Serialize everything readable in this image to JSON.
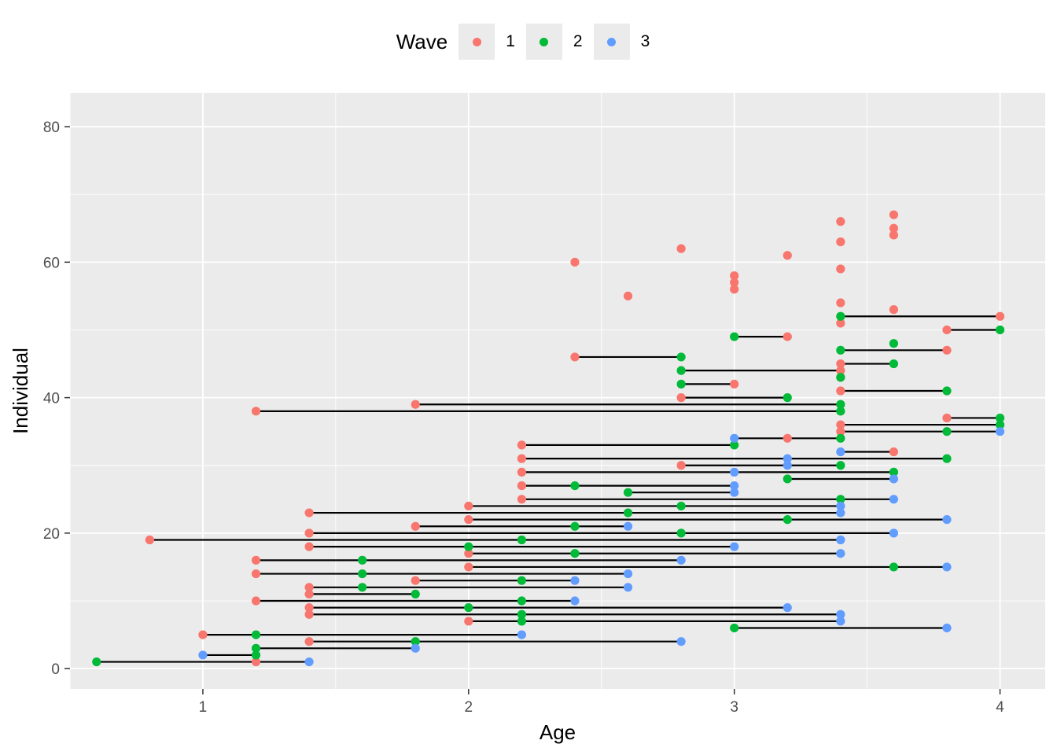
{
  "chart_data": {
    "type": "scatter",
    "xlabel": "Age",
    "ylabel": "Individual",
    "xlim": [
      0.5,
      4.17
    ],
    "ylim": [
      -3,
      85
    ],
    "x_ticks": [
      1,
      2,
      3,
      4
    ],
    "y_ticks": [
      0,
      20,
      40,
      60,
      80
    ],
    "grid": true,
    "legend": {
      "title": "Wave",
      "position": "top",
      "items": [
        {
          "label": "1",
          "color": "#F8766D"
        },
        {
          "label": "2",
          "color": "#00BA38"
        },
        {
          "label": "3",
          "color": "#619CFF"
        }
      ]
    },
    "series": [
      {
        "name": "1",
        "color": "#F8766D",
        "points": [
          [
            1.2,
            1
          ],
          [
            1.0,
            5
          ],
          [
            1.4,
            4
          ],
          [
            2.0,
            7
          ],
          [
            1.4,
            8
          ],
          [
            1.4,
            9
          ],
          [
            1.2,
            10
          ],
          [
            1.4,
            11
          ],
          [
            1.4,
            12
          ],
          [
            1.8,
            13
          ],
          [
            1.2,
            14
          ],
          [
            2.0,
            15
          ],
          [
            1.2,
            16
          ],
          [
            2.0,
            17
          ],
          [
            1.4,
            18
          ],
          [
            0.8,
            19
          ],
          [
            1.4,
            20
          ],
          [
            1.8,
            21
          ],
          [
            2.0,
            22
          ],
          [
            1.4,
            23
          ],
          [
            2.0,
            24
          ],
          [
            2.2,
            25
          ],
          [
            2.2,
            27
          ],
          [
            2.2,
            29
          ],
          [
            2.8,
            30
          ],
          [
            2.2,
            31
          ],
          [
            3.6,
            32
          ],
          [
            2.2,
            33
          ],
          [
            3.2,
            34
          ],
          [
            3.4,
            35
          ],
          [
            3.4,
            36
          ],
          [
            3.8,
            37
          ],
          [
            1.2,
            38
          ],
          [
            1.8,
            39
          ],
          [
            2.8,
            40
          ],
          [
            3.4,
            41
          ],
          [
            3.0,
            42
          ],
          [
            3.4,
            43
          ],
          [
            3.4,
            44
          ],
          [
            3.4,
            45
          ],
          [
            2.4,
            46
          ],
          [
            3.8,
            47
          ],
          [
            3.2,
            49
          ],
          [
            3.8,
            50
          ],
          [
            3.4,
            51
          ],
          [
            4.0,
            52
          ],
          [
            3.6,
            53
          ],
          [
            3.4,
            54
          ],
          [
            2.6,
            55
          ],
          [
            3.0,
            56
          ],
          [
            3.0,
            57
          ],
          [
            3.0,
            58
          ],
          [
            3.4,
            59
          ],
          [
            2.4,
            60
          ],
          [
            3.2,
            61
          ],
          [
            2.8,
            62
          ],
          [
            3.4,
            63
          ],
          [
            3.6,
            64
          ],
          [
            3.6,
            65
          ],
          [
            3.4,
            66
          ],
          [
            3.6,
            67
          ]
        ]
      },
      {
        "name": "2",
        "color": "#00BA38",
        "points": [
          [
            0.6,
            1
          ],
          [
            1.2,
            2
          ],
          [
            1.2,
            3
          ],
          [
            1.8,
            4
          ],
          [
            1.2,
            5
          ],
          [
            3.0,
            6
          ],
          [
            2.2,
            7
          ],
          [
            2.2,
            8
          ],
          [
            2.0,
            9
          ],
          [
            2.2,
            10
          ],
          [
            1.8,
            11
          ],
          [
            1.6,
            12
          ],
          [
            2.2,
            13
          ],
          [
            1.6,
            14
          ],
          [
            3.6,
            15
          ],
          [
            1.6,
            16
          ],
          [
            2.4,
            17
          ],
          [
            2.0,
            18
          ],
          [
            2.2,
            19
          ],
          [
            2.8,
            20
          ],
          [
            2.4,
            21
          ],
          [
            3.2,
            22
          ],
          [
            2.6,
            23
          ],
          [
            2.8,
            24
          ],
          [
            3.4,
            25
          ],
          [
            2.6,
            26
          ],
          [
            2.4,
            27
          ],
          [
            3.2,
            28
          ],
          [
            3.6,
            29
          ],
          [
            3.4,
            30
          ],
          [
            3.8,
            31
          ],
          [
            3.0,
            33
          ],
          [
            3.4,
            34
          ],
          [
            3.8,
            35
          ],
          [
            4.0,
            36
          ],
          [
            4.0,
            37
          ],
          [
            3.4,
            38
          ],
          [
            3.4,
            39
          ],
          [
            3.2,
            40
          ],
          [
            3.8,
            41
          ],
          [
            2.8,
            42
          ],
          [
            3.4,
            43
          ],
          [
            2.8,
            44
          ],
          [
            3.6,
            45
          ],
          [
            2.8,
            46
          ],
          [
            3.4,
            47
          ],
          [
            3.6,
            48
          ],
          [
            3.0,
            49
          ],
          [
            4.0,
            50
          ],
          [
            3.4,
            52
          ]
        ]
      },
      {
        "name": "3",
        "color": "#619CFF",
        "points": [
          [
            1.4,
            1
          ],
          [
            1.0,
            2
          ],
          [
            1.8,
            3
          ],
          [
            2.8,
            4
          ],
          [
            2.2,
            5
          ],
          [
            3.8,
            6
          ],
          [
            3.4,
            7
          ],
          [
            3.4,
            8
          ],
          [
            3.2,
            9
          ],
          [
            2.4,
            10
          ],
          [
            2.6,
            12
          ],
          [
            2.4,
            13
          ],
          [
            2.6,
            14
          ],
          [
            3.8,
            15
          ],
          [
            2.8,
            16
          ],
          [
            3.4,
            17
          ],
          [
            3.0,
            18
          ],
          [
            3.4,
            19
          ],
          [
            3.6,
            20
          ],
          [
            2.6,
            21
          ],
          [
            3.8,
            22
          ],
          [
            3.4,
            23
          ],
          [
            3.4,
            24
          ],
          [
            3.6,
            25
          ],
          [
            3.0,
            26
          ],
          [
            3.0,
            27
          ],
          [
            3.6,
            28
          ],
          [
            3.0,
            29
          ],
          [
            3.2,
            30
          ],
          [
            3.2,
            31
          ],
          [
            3.4,
            32
          ],
          [
            3.0,
            34
          ],
          [
            4.0,
            35
          ]
        ]
      }
    ],
    "segments": [
      {
        "y": 1,
        "x_start": 0.6,
        "x_end": 1.4
      },
      {
        "y": 2,
        "x_start": 1.0,
        "x_end": 1.2
      },
      {
        "y": 3,
        "x_start": 1.2,
        "x_end": 1.8
      },
      {
        "y": 4,
        "x_start": 1.4,
        "x_end": 2.8
      },
      {
        "y": 5,
        "x_start": 1.0,
        "x_end": 2.2
      },
      {
        "y": 6,
        "x_start": 3.0,
        "x_end": 3.8
      },
      {
        "y": 7,
        "x_start": 2.0,
        "x_end": 3.4
      },
      {
        "y": 8,
        "x_start": 1.4,
        "x_end": 3.4
      },
      {
        "y": 9,
        "x_start": 1.4,
        "x_end": 3.2
      },
      {
        "y": 10,
        "x_start": 1.2,
        "x_end": 2.4
      },
      {
        "y": 11,
        "x_start": 1.4,
        "x_end": 1.8
      },
      {
        "y": 12,
        "x_start": 1.4,
        "x_end": 2.6
      },
      {
        "y": 13,
        "x_start": 1.8,
        "x_end": 2.4
      },
      {
        "y": 14,
        "x_start": 1.2,
        "x_end": 2.6
      },
      {
        "y": 15,
        "x_start": 2.0,
        "x_end": 3.8
      },
      {
        "y": 16,
        "x_start": 1.2,
        "x_end": 2.8
      },
      {
        "y": 17,
        "x_start": 2.0,
        "x_end": 3.4
      },
      {
        "y": 18,
        "x_start": 1.4,
        "x_end": 3.0
      },
      {
        "y": 19,
        "x_start": 0.8,
        "x_end": 3.4
      },
      {
        "y": 20,
        "x_start": 1.4,
        "x_end": 3.6
      },
      {
        "y": 21,
        "x_start": 1.8,
        "x_end": 2.6
      },
      {
        "y": 22,
        "x_start": 2.0,
        "x_end": 3.8
      },
      {
        "y": 23,
        "x_start": 1.4,
        "x_end": 3.4
      },
      {
        "y": 24,
        "x_start": 2.0,
        "x_end": 3.4
      },
      {
        "y": 25,
        "x_start": 2.2,
        "x_end": 3.6
      },
      {
        "y": 26,
        "x_start": 2.6,
        "x_end": 3.0
      },
      {
        "y": 27,
        "x_start": 2.2,
        "x_end": 3.0
      },
      {
        "y": 28,
        "x_start": 3.2,
        "x_end": 3.6
      },
      {
        "y": 29,
        "x_start": 2.2,
        "x_end": 3.6
      },
      {
        "y": 30,
        "x_start": 2.8,
        "x_end": 3.4
      },
      {
        "y": 31,
        "x_start": 2.2,
        "x_end": 3.8
      },
      {
        "y": 32,
        "x_start": 3.4,
        "x_end": 3.6
      },
      {
        "y": 33,
        "x_start": 2.2,
        "x_end": 3.0
      },
      {
        "y": 34,
        "x_start": 3.0,
        "x_end": 3.4
      },
      {
        "y": 35,
        "x_start": 3.4,
        "x_end": 4.0
      },
      {
        "y": 36,
        "x_start": 3.4,
        "x_end": 4.0
      },
      {
        "y": 37,
        "x_start": 3.8,
        "x_end": 4.0
      },
      {
        "y": 38,
        "x_start": 1.2,
        "x_end": 3.4
      },
      {
        "y": 39,
        "x_start": 1.8,
        "x_end": 3.4
      },
      {
        "y": 40,
        "x_start": 2.8,
        "x_end": 3.2
      },
      {
        "y": 41,
        "x_start": 3.4,
        "x_end": 3.8
      },
      {
        "y": 42,
        "x_start": 2.8,
        "x_end": 3.0
      },
      {
        "y": 44,
        "x_start": 2.8,
        "x_end": 3.4
      },
      {
        "y": 45,
        "x_start": 3.4,
        "x_end": 3.6
      },
      {
        "y": 46,
        "x_start": 2.4,
        "x_end": 2.8
      },
      {
        "y": 47,
        "x_start": 3.4,
        "x_end": 3.8
      },
      {
        "y": 49,
        "x_start": 3.0,
        "x_end": 3.2
      },
      {
        "y": 50,
        "x_start": 3.8,
        "x_end": 4.0
      },
      {
        "y": 52,
        "x_start": 3.4,
        "x_end": 4.0
      }
    ]
  }
}
